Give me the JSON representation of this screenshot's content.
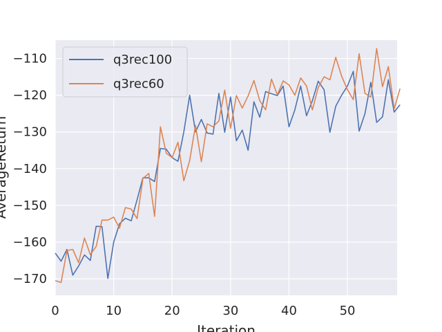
{
  "chart_data": {
    "type": "line",
    "xlabel": "Iteration",
    "ylabel": "AverageReturn",
    "xlim": [
      0,
      58.5
    ],
    "ylim": [
      -174.5,
      -105
    ],
    "xticks": [
      0,
      10,
      20,
      30,
      40,
      50
    ],
    "yticks": [
      -170,
      -160,
      -150,
      -140,
      -130,
      -120,
      -110
    ],
    "grid": true,
    "legend_position": "top-left",
    "background": "#eaeaf2",
    "series": [
      {
        "name": "q3rec100",
        "color": "#4c72b0",
        "values": [
          -163,
          -165.2,
          -162,
          -169,
          -166.5,
          -163.5,
          -165,
          -155.7,
          -155.8,
          -169.9,
          -160,
          -155,
          -153.5,
          -154.2,
          -148.5,
          -142.5,
          -142.5,
          -143.5,
          -134.5,
          -134.7,
          -137,
          -138,
          -130,
          -120,
          -130,
          -126.6,
          -130.3,
          -130.6,
          -119.5,
          -130.1,
          -120.5,
          -132.4,
          -129.5,
          -135,
          -121.8,
          -126,
          -119,
          -119.6,
          -120.1,
          -117.5,
          -128.6,
          -124,
          -117.5,
          -125.6,
          -121.5,
          -116.2,
          -118.5,
          -130.1,
          -123,
          -120,
          -117.5,
          -113.5,
          -129.8,
          -125,
          -116.5,
          -127.4,
          -125.9,
          -115.8,
          -124.6,
          -122.6
        ]
      },
      {
        "name": "q3rec60",
        "color": "#dd8452",
        "values": [
          -170.5,
          -171,
          -162.3,
          -162,
          -165.6,
          -158.9,
          -163.4,
          -161.2,
          -154,
          -154,
          -153.2,
          -156.2,
          -150.6,
          -151,
          -153.6,
          -142.7,
          -141.3,
          -153,
          -128.6,
          -135.8,
          -137,
          -132.8,
          -143.3,
          -137.8,
          -128.2,
          -138.1,
          -127.8,
          -128.6,
          -127,
          -118.6,
          -129,
          -120.1,
          -123.5,
          -120.2,
          -116,
          -121.5,
          -124,
          -115.6,
          -119.9,
          -116.1,
          -117.2,
          -120,
          -115.3,
          -117.5,
          -124,
          -117.9,
          -115,
          -115.8,
          -109.7,
          -114.8,
          -118.5,
          -121.2,
          -108.7,
          -119.5,
          -120.5,
          -107.3,
          -117.7,
          -112.2,
          -123.7,
          -118.2
        ]
      }
    ]
  }
}
